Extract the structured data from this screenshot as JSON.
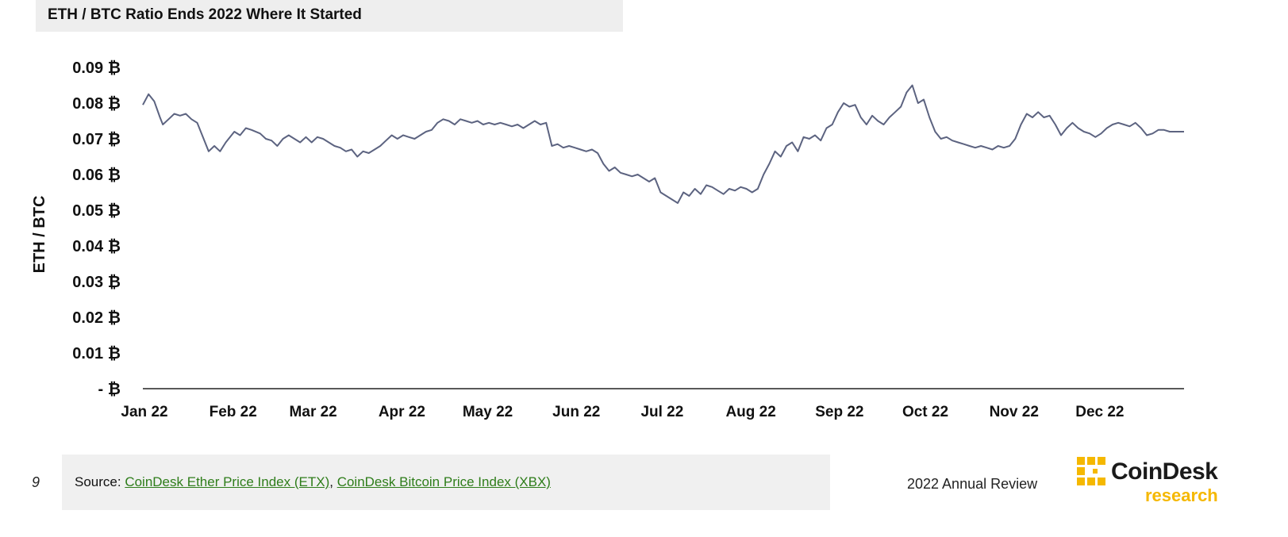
{
  "header": {
    "title": "ETH / BTC Ratio Ends 2022 Where It Started"
  },
  "footer": {
    "page_number": "9",
    "source_prefix": "Source: ",
    "source_link_1": "CoinDesk Ether Price Index (ETX)",
    "separator": ", ",
    "source_link_2": "CoinDesk Bitcoin Price Index (XBX)",
    "report_name": "2022 Annual Review",
    "logo_main": "CoinDesk",
    "logo_sub": "research",
    "link_color": "#2e7d1a",
    "logo_accent": "#f5b800"
  },
  "chart_data": {
    "type": "line",
    "title": "",
    "ylabel": "ETH / BTC",
    "xlabel": "",
    "ylim": [
      0,
      0.09
    ],
    "yticks": [
      {
        "value": 0,
        "label": "-  ₿"
      },
      {
        "value": 0.01,
        "label": "0.01 ₿"
      },
      {
        "value": 0.02,
        "label": "0.02 ₿"
      },
      {
        "value": 0.03,
        "label": "0.03 ₿"
      },
      {
        "value": 0.04,
        "label": "0.04 ₿"
      },
      {
        "value": 0.05,
        "label": "0.05 ₿"
      },
      {
        "value": 0.06,
        "label": "0.06 ₿"
      },
      {
        "value": 0.07,
        "label": "0.07 ₿"
      },
      {
        "value": 0.08,
        "label": "0.08 ₿"
      },
      {
        "value": 0.09,
        "label": "0.09 ₿"
      }
    ],
    "xticks": [
      {
        "x": "2022-01-01",
        "label": "Jan 22"
      },
      {
        "x": "2022-02-01",
        "label": "Feb 22"
      },
      {
        "x": "2022-03-01",
        "label": "Mar 22"
      },
      {
        "x": "2022-04-01",
        "label": "Apr 22"
      },
      {
        "x": "2022-05-01",
        "label": "May 22"
      },
      {
        "x": "2022-06-01",
        "label": "Jun 22"
      },
      {
        "x": "2022-07-01",
        "label": "Jul 22"
      },
      {
        "x": "2022-08-01",
        "label": "Aug 22"
      },
      {
        "x": "2022-09-01",
        "label": "Sep 22"
      },
      {
        "x": "2022-10-01",
        "label": "Oct 22"
      },
      {
        "x": "2022-11-01",
        "label": "Nov 22"
      },
      {
        "x": "2022-12-01",
        "label": "Dec 22"
      }
    ],
    "xrange": [
      "2022-01-01",
      "2022-12-31"
    ],
    "grid": false,
    "legend": "none",
    "series": [
      {
        "color": "#5c6380",
        "points": [
          [
            "2022-01-01",
            0.0795
          ],
          [
            "2022-01-03",
            0.0825
          ],
          [
            "2022-01-05",
            0.0805
          ],
          [
            "2022-01-07",
            0.076
          ],
          [
            "2022-01-08",
            0.074
          ],
          [
            "2022-01-10",
            0.0755
          ],
          [
            "2022-01-12",
            0.077
          ],
          [
            "2022-01-14",
            0.0765
          ],
          [
            "2022-01-16",
            0.077
          ],
          [
            "2022-01-18",
            0.0755
          ],
          [
            "2022-01-20",
            0.0745
          ],
          [
            "2022-01-22",
            0.0705
          ],
          [
            "2022-01-24",
            0.0665
          ],
          [
            "2022-01-26",
            0.068
          ],
          [
            "2022-01-28",
            0.0665
          ],
          [
            "2022-01-30",
            0.069
          ],
          [
            "2022-02-02",
            0.072
          ],
          [
            "2022-02-04",
            0.071
          ],
          [
            "2022-02-06",
            0.073
          ],
          [
            "2022-02-08",
            0.0725
          ],
          [
            "2022-02-11",
            0.0715
          ],
          [
            "2022-02-13",
            0.07
          ],
          [
            "2022-02-15",
            0.0695
          ],
          [
            "2022-02-17",
            0.068
          ],
          [
            "2022-02-19",
            0.07
          ],
          [
            "2022-02-21",
            0.071
          ],
          [
            "2022-02-23",
            0.07
          ],
          [
            "2022-02-25",
            0.069
          ],
          [
            "2022-02-27",
            0.0705
          ],
          [
            "2022-03-01",
            0.069
          ],
          [
            "2022-03-03",
            0.0705
          ],
          [
            "2022-03-05",
            0.07
          ],
          [
            "2022-03-07",
            0.069
          ],
          [
            "2022-03-09",
            0.068
          ],
          [
            "2022-03-11",
            0.0675
          ],
          [
            "2022-03-13",
            0.0665
          ],
          [
            "2022-03-15",
            0.067
          ],
          [
            "2022-03-17",
            0.065
          ],
          [
            "2022-03-19",
            0.0665
          ],
          [
            "2022-03-21",
            0.066
          ],
          [
            "2022-03-23",
            0.067
          ],
          [
            "2022-03-25",
            0.068
          ],
          [
            "2022-03-27",
            0.0695
          ],
          [
            "2022-03-29",
            0.071
          ],
          [
            "2022-03-31",
            0.07
          ],
          [
            "2022-04-02",
            0.071
          ],
          [
            "2022-04-04",
            0.0705
          ],
          [
            "2022-04-06",
            0.07
          ],
          [
            "2022-04-08",
            0.071
          ],
          [
            "2022-04-10",
            0.072
          ],
          [
            "2022-04-12",
            0.0725
          ],
          [
            "2022-04-14",
            0.0745
          ],
          [
            "2022-04-16",
            0.0755
          ],
          [
            "2022-04-18",
            0.075
          ],
          [
            "2022-04-20",
            0.074
          ],
          [
            "2022-04-22",
            0.0755
          ],
          [
            "2022-04-24",
            0.075
          ],
          [
            "2022-04-26",
            0.0745
          ],
          [
            "2022-04-28",
            0.075
          ],
          [
            "2022-04-30",
            0.074
          ],
          [
            "2022-05-02",
            0.0745
          ],
          [
            "2022-05-04",
            0.074
          ],
          [
            "2022-05-06",
            0.0745
          ],
          [
            "2022-05-08",
            0.074
          ],
          [
            "2022-05-10",
            0.0735
          ],
          [
            "2022-05-12",
            0.074
          ],
          [
            "2022-05-14",
            0.073
          ],
          [
            "2022-05-16",
            0.074
          ],
          [
            "2022-05-18",
            0.075
          ],
          [
            "2022-05-20",
            0.074
          ],
          [
            "2022-05-22",
            0.0745
          ],
          [
            "2022-05-24",
            0.068
          ],
          [
            "2022-05-26",
            0.0685
          ],
          [
            "2022-05-28",
            0.0675
          ],
          [
            "2022-05-30",
            0.068
          ],
          [
            "2022-06-01",
            0.0675
          ],
          [
            "2022-06-03",
            0.067
          ],
          [
            "2022-06-05",
            0.0665
          ],
          [
            "2022-06-07",
            0.067
          ],
          [
            "2022-06-09",
            0.066
          ],
          [
            "2022-06-11",
            0.063
          ],
          [
            "2022-06-13",
            0.061
          ],
          [
            "2022-06-15",
            0.062
          ],
          [
            "2022-06-17",
            0.0605
          ],
          [
            "2022-06-19",
            0.06
          ],
          [
            "2022-06-21",
            0.0595
          ],
          [
            "2022-06-23",
            0.06
          ],
          [
            "2022-06-25",
            0.059
          ],
          [
            "2022-06-27",
            0.058
          ],
          [
            "2022-06-29",
            0.059
          ],
          [
            "2022-07-01",
            0.055
          ],
          [
            "2022-07-03",
            0.054
          ],
          [
            "2022-07-05",
            0.053
          ],
          [
            "2022-07-07",
            0.052
          ],
          [
            "2022-07-09",
            0.055
          ],
          [
            "2022-07-11",
            0.054
          ],
          [
            "2022-07-13",
            0.056
          ],
          [
            "2022-07-15",
            0.0545
          ],
          [
            "2022-07-17",
            0.057
          ],
          [
            "2022-07-19",
            0.0565
          ],
          [
            "2022-07-21",
            0.0555
          ],
          [
            "2022-07-23",
            0.0545
          ],
          [
            "2022-07-25",
            0.056
          ],
          [
            "2022-07-27",
            0.0555
          ],
          [
            "2022-07-29",
            0.0565
          ],
          [
            "2022-07-31",
            0.056
          ],
          [
            "2022-08-02",
            0.055
          ],
          [
            "2022-08-04",
            0.056
          ],
          [
            "2022-08-06",
            0.06
          ],
          [
            "2022-08-08",
            0.063
          ],
          [
            "2022-08-10",
            0.0665
          ],
          [
            "2022-08-12",
            0.065
          ],
          [
            "2022-08-14",
            0.068
          ],
          [
            "2022-08-16",
            0.069
          ],
          [
            "2022-08-18",
            0.0665
          ],
          [
            "2022-08-20",
            0.0705
          ],
          [
            "2022-08-22",
            0.07
          ],
          [
            "2022-08-24",
            0.071
          ],
          [
            "2022-08-26",
            0.0695
          ],
          [
            "2022-08-28",
            0.073
          ],
          [
            "2022-08-30",
            0.074
          ],
          [
            "2022-09-01",
            0.0775
          ],
          [
            "2022-09-03",
            0.08
          ],
          [
            "2022-09-05",
            0.079
          ],
          [
            "2022-09-07",
            0.0795
          ],
          [
            "2022-09-09",
            0.076
          ],
          [
            "2022-09-11",
            0.074
          ],
          [
            "2022-09-13",
            0.0765
          ],
          [
            "2022-09-15",
            0.075
          ],
          [
            "2022-09-17",
            0.074
          ],
          [
            "2022-09-19",
            0.076
          ],
          [
            "2022-09-21",
            0.0775
          ],
          [
            "2022-09-23",
            0.079
          ],
          [
            "2022-09-25",
            0.083
          ],
          [
            "2022-09-27",
            0.085
          ],
          [
            "2022-09-29",
            0.08
          ],
          [
            "2022-10-01",
            0.081
          ],
          [
            "2022-10-03",
            0.076
          ],
          [
            "2022-10-05",
            0.072
          ],
          [
            "2022-10-07",
            0.07
          ],
          [
            "2022-10-09",
            0.0705
          ],
          [
            "2022-10-11",
            0.0695
          ],
          [
            "2022-10-13",
            0.069
          ],
          [
            "2022-10-15",
            0.0685
          ],
          [
            "2022-10-17",
            0.068
          ],
          [
            "2022-10-19",
            0.0675
          ],
          [
            "2022-10-21",
            0.068
          ],
          [
            "2022-10-23",
            0.0675
          ],
          [
            "2022-10-25",
            0.067
          ],
          [
            "2022-10-27",
            0.068
          ],
          [
            "2022-10-29",
            0.0675
          ],
          [
            "2022-10-31",
            0.068
          ],
          [
            "2022-11-02",
            0.07
          ],
          [
            "2022-11-04",
            0.074
          ],
          [
            "2022-11-06",
            0.077
          ],
          [
            "2022-11-08",
            0.076
          ],
          [
            "2022-11-10",
            0.0775
          ],
          [
            "2022-11-12",
            0.076
          ],
          [
            "2022-11-14",
            0.0765
          ],
          [
            "2022-11-16",
            0.074
          ],
          [
            "2022-11-18",
            0.071
          ],
          [
            "2022-11-20",
            0.073
          ],
          [
            "2022-11-22",
            0.0745
          ],
          [
            "2022-11-24",
            0.073
          ],
          [
            "2022-11-26",
            0.072
          ],
          [
            "2022-11-28",
            0.0715
          ],
          [
            "2022-11-30",
            0.0705
          ],
          [
            "2022-12-02",
            0.0715
          ],
          [
            "2022-12-04",
            0.073
          ],
          [
            "2022-12-06",
            0.074
          ],
          [
            "2022-12-08",
            0.0745
          ],
          [
            "2022-12-10",
            0.074
          ],
          [
            "2022-12-12",
            0.0735
          ],
          [
            "2022-12-14",
            0.0745
          ],
          [
            "2022-12-16",
            0.073
          ],
          [
            "2022-12-18",
            0.071
          ],
          [
            "2022-12-20",
            0.0715
          ],
          [
            "2022-12-22",
            0.0725
          ],
          [
            "2022-12-24",
            0.0725
          ],
          [
            "2022-12-26",
            0.072
          ],
          [
            "2022-12-28",
            0.072
          ],
          [
            "2022-12-31",
            0.072
          ]
        ]
      }
    ]
  }
}
